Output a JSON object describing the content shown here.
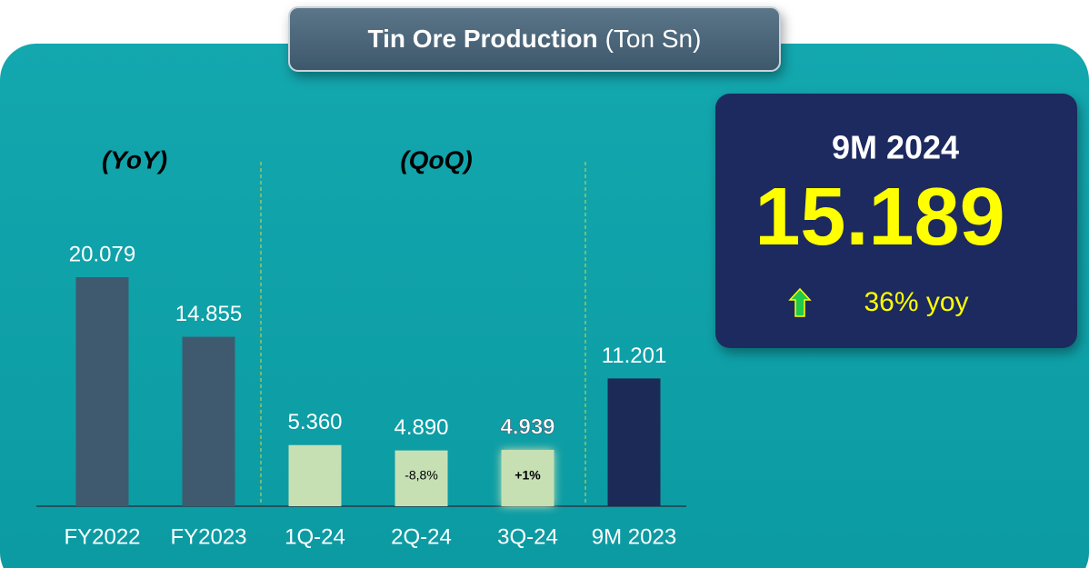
{
  "chart_data": {
    "type": "bar",
    "title": "Tin Ore Production",
    "unit": "(Ton Sn)",
    "categories": [
      "FY2022",
      "FY2023",
      "1Q-24",
      "2Q-24",
      "3Q-24",
      "9M 2023"
    ],
    "values": [
      20079,
      14855,
      5360,
      4890,
      4939,
      11201
    ],
    "value_labels": [
      "20.079",
      "14.855",
      "5.360",
      "4.890",
      "4.939",
      "11.201"
    ],
    "colors": [
      "#3f5a6e",
      "#3f5a6e",
      "#c6e0b4",
      "#c6e0b4",
      "#c6e0b4",
      "#1c2a57"
    ],
    "changes": [
      null,
      null,
      null,
      "-8,8%",
      "+1%",
      null
    ],
    "section_labels": [
      "(YoY)",
      "(QoQ)"
    ],
    "highlight": {
      "label": "9M 2024",
      "value": "15.189",
      "change": "36% yoy"
    }
  }
}
